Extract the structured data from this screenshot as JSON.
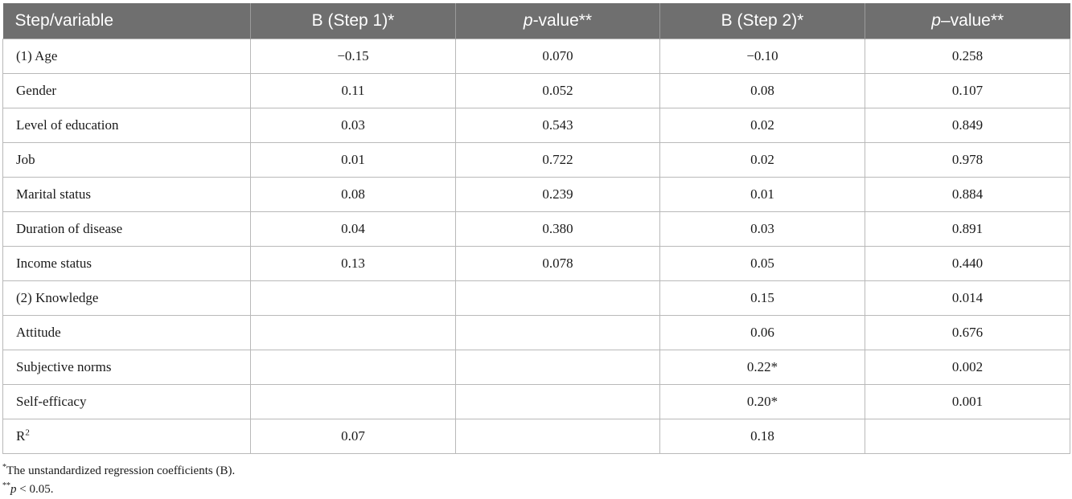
{
  "table": {
    "headers": {
      "c1": "Step/variable",
      "c2": "B (Step 1)*",
      "c3_italic": "p",
      "c3_rest": "-value**",
      "c4": "B (Step 2)*",
      "c5_italic": "p",
      "c5_rest": "–value**"
    },
    "rows": [
      [
        "(1) Age",
        "−0.15",
        "0.070",
        "−0.10",
        "0.258"
      ],
      [
        "Gender",
        "0.11",
        "0.052",
        "0.08",
        "0.107"
      ],
      [
        "Level of education",
        "0.03",
        "0.543",
        "0.02",
        "0.849"
      ],
      [
        "Job",
        "0.01",
        "0.722",
        "0.02",
        "0.978"
      ],
      [
        "Marital status",
        "0.08",
        "0.239",
        "0.01",
        "0.884"
      ],
      [
        "Duration of disease",
        "0.04",
        "0.380",
        "0.03",
        "0.891"
      ],
      [
        "Income status",
        "0.13",
        "0.078",
        "0.05",
        "0.440"
      ],
      [
        "(2) Knowledge",
        "",
        "",
        "0.15",
        "0.014"
      ],
      [
        "Attitude",
        "",
        "",
        "0.06",
        "0.676"
      ],
      [
        "Subjective norms",
        "",
        "",
        "0.22*",
        "0.002"
      ],
      [
        "Self-efficacy",
        "",
        "",
        "0.20*",
        "0.001"
      ]
    ],
    "r2_row": {
      "label": "R",
      "label_sup": "2",
      "step1": "0.07",
      "p1": "",
      "step2": "0.18",
      "p2": ""
    }
  },
  "notes": {
    "note1_marker": "*",
    "note1_text": "The unstandardized regression coefficients (B).",
    "note2_marker": "**",
    "note2_italic": "p",
    "note2_text": " < 0.05."
  }
}
